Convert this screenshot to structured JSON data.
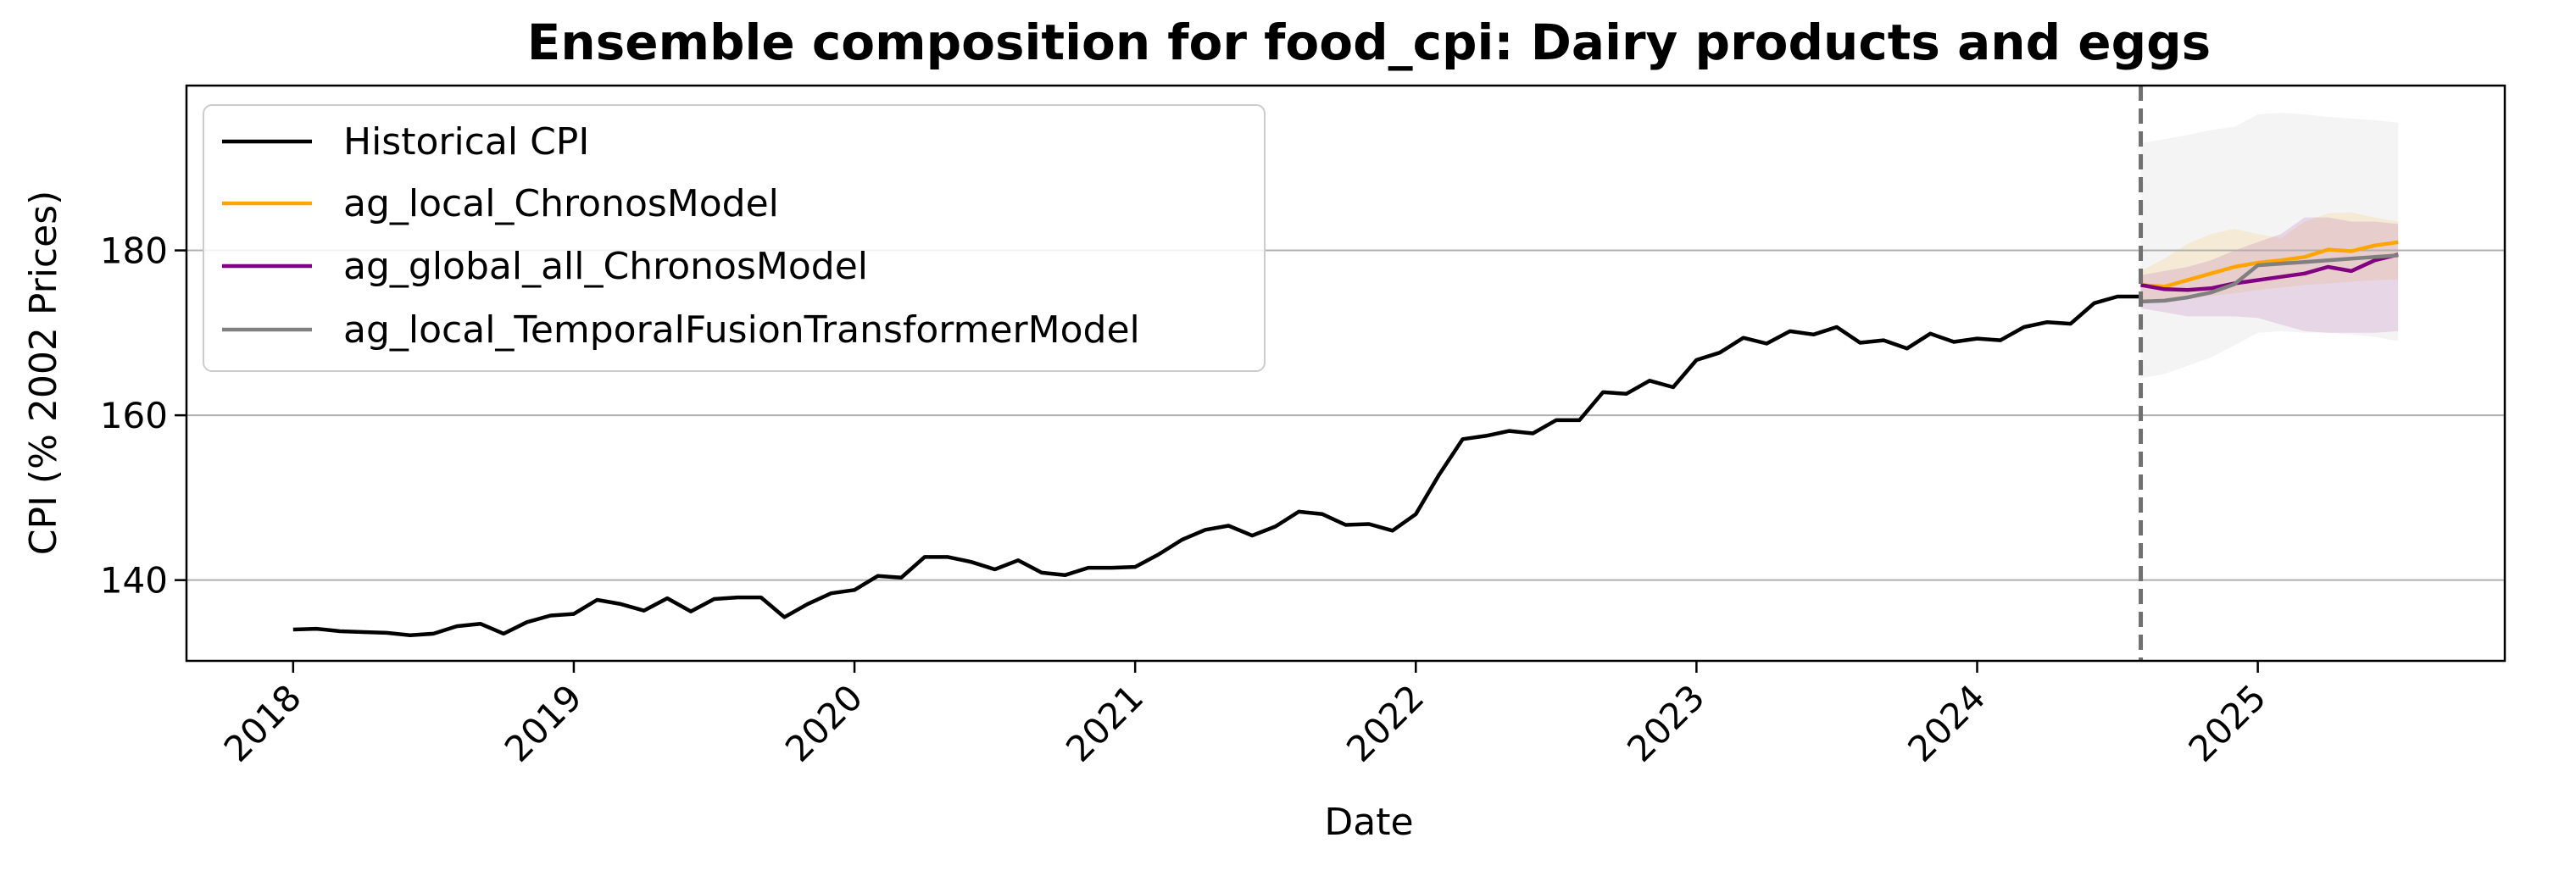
{
  "chart_data": {
    "type": "line",
    "title": "Ensemble composition for food_cpi: Dairy products and eggs",
    "xlabel": "Date",
    "ylabel": "CPI (% 2002 Prices)",
    "xlim": [
      2017.62,
      2025.88
    ],
    "ylim": [
      130.2,
      200.0
    ],
    "x_ticks": [
      2018,
      2019,
      2020,
      2021,
      2022,
      2023,
      2024,
      2025
    ],
    "y_ticks": [
      140,
      160,
      180
    ],
    "grid": "y-major",
    "legend_position": "upper-left",
    "forecast_start": 2024.583,
    "colors": {
      "historical": "#000000",
      "local_chronos": "#FFA500",
      "global_chronos": "#800080",
      "tft": "#808080",
      "divider": "#707070",
      "grid": "#b0b0b0"
    },
    "history": {
      "name": "Historical CPI",
      "x": [
        2018.0,
        2018.083,
        2018.167,
        2018.25,
        2018.333,
        2018.417,
        2018.5,
        2018.583,
        2018.667,
        2018.75,
        2018.833,
        2018.917,
        2019.0,
        2019.083,
        2019.167,
        2019.25,
        2019.333,
        2019.417,
        2019.5,
        2019.583,
        2019.667,
        2019.75,
        2019.833,
        2019.917,
        2020.0,
        2020.083,
        2020.167,
        2020.25,
        2020.333,
        2020.417,
        2020.5,
        2020.583,
        2020.667,
        2020.75,
        2020.833,
        2020.917,
        2021.0,
        2021.083,
        2021.167,
        2021.25,
        2021.333,
        2021.417,
        2021.5,
        2021.583,
        2021.667,
        2021.75,
        2021.833,
        2021.917,
        2022.0,
        2022.083,
        2022.167,
        2022.25,
        2022.333,
        2022.417,
        2022.5,
        2022.583,
        2022.667,
        2022.75,
        2022.833,
        2022.917,
        2023.0,
        2023.083,
        2023.167,
        2023.25,
        2023.333,
        2023.417,
        2023.5,
        2023.583,
        2023.667,
        2023.75,
        2023.833,
        2023.917,
        2024.0,
        2024.083,
        2024.167,
        2024.25,
        2024.333,
        2024.417,
        2024.5,
        2024.583
      ],
      "y": [
        134.0,
        134.1,
        133.8,
        133.7,
        133.6,
        133.3,
        133.5,
        134.4,
        134.7,
        133.5,
        134.9,
        135.7,
        135.9,
        137.6,
        137.1,
        136.3,
        137.8,
        136.2,
        137.7,
        137.9,
        137.9,
        135.5,
        137.1,
        138.4,
        138.8,
        140.5,
        140.3,
        142.8,
        142.8,
        142.2,
        141.3,
        142.4,
        140.9,
        140.6,
        141.5,
        141.5,
        141.6,
        143.1,
        144.9,
        146.1,
        146.6,
        145.4,
        146.5,
        148.3,
        148.0,
        146.7,
        146.8,
        146.0,
        148.0,
        152.8,
        157.1,
        157.5,
        158.1,
        157.8,
        159.4,
        159.4,
        162.8,
        162.6,
        164.2,
        163.4,
        166.7,
        167.6,
        169.4,
        168.7,
        170.2,
        169.8,
        170.7,
        168.8,
        169.1,
        168.1,
        169.9,
        168.9,
        169.3,
        169.1,
        170.7,
        171.3,
        171.1,
        173.6,
        174.4,
        174.4
      ]
    },
    "series": [
      {
        "name": "ag_local_ChronosModel",
        "color": "#FFA500",
        "x": [
          2024.583,
          2024.667,
          2024.75,
          2024.833,
          2024.917,
          2025.0,
          2025.083,
          2025.167,
          2025.25,
          2025.333,
          2025.417,
          2025.5
        ],
        "y": [
          175.8,
          175.6,
          176.4,
          177.2,
          178.0,
          178.5,
          178.8,
          179.2,
          180.1,
          179.9,
          180.6,
          181.0
        ],
        "band_upper": [
          177.5,
          179.0,
          180.8,
          182.0,
          182.6,
          182.0,
          181.5,
          183.5,
          184.5,
          184.6,
          184.0,
          183.5
        ],
        "band_lower": [
          173.5,
          173.8,
          174.2,
          174.5,
          174.8,
          175.2,
          175.5,
          175.8,
          176.0,
          176.2,
          176.4,
          176.5
        ]
      },
      {
        "name": "ag_global_all_ChronosModel",
        "color": "#800080",
        "x": [
          2024.583,
          2024.667,
          2024.75,
          2024.833,
          2024.917,
          2025.0,
          2025.083,
          2025.167,
          2025.25,
          2025.333,
          2025.417,
          2025.5
        ],
        "y": [
          175.8,
          175.3,
          175.2,
          175.4,
          176.0,
          176.4,
          176.8,
          177.2,
          178.0,
          177.5,
          178.8,
          179.5
        ],
        "band_upper": [
          177.0,
          177.5,
          178.0,
          178.8,
          180.0,
          181.0,
          182.0,
          184.0,
          184.0,
          183.5,
          183.5,
          183.2
        ],
        "band_lower": [
          173.0,
          172.5,
          172.0,
          172.0,
          172.0,
          171.8,
          171.0,
          170.2,
          170.0,
          170.0,
          170.0,
          170.2
        ]
      },
      {
        "name": "ag_local_TemporalFusionTransformerModel",
        "color": "#808080",
        "x": [
          2024.583,
          2024.667,
          2024.75,
          2024.833,
          2024.917,
          2025.0,
          2025.083,
          2025.167,
          2025.25,
          2025.333,
          2025.417,
          2025.5
        ],
        "y": [
          173.8,
          173.9,
          174.3,
          174.9,
          175.9,
          178.2,
          178.4,
          178.6,
          178.8,
          179.0,
          179.2,
          179.4
        ],
        "band_upper": [
          193.0,
          193.5,
          194.0,
          194.6,
          195.0,
          196.5,
          196.7,
          196.5,
          196.2,
          196.0,
          195.8,
          195.5
        ],
        "band_lower": [
          164.5,
          165.0,
          166.0,
          167.0,
          168.5,
          170.0,
          170.2,
          170.0,
          170.0,
          169.8,
          169.5,
          169.0
        ]
      }
    ]
  }
}
